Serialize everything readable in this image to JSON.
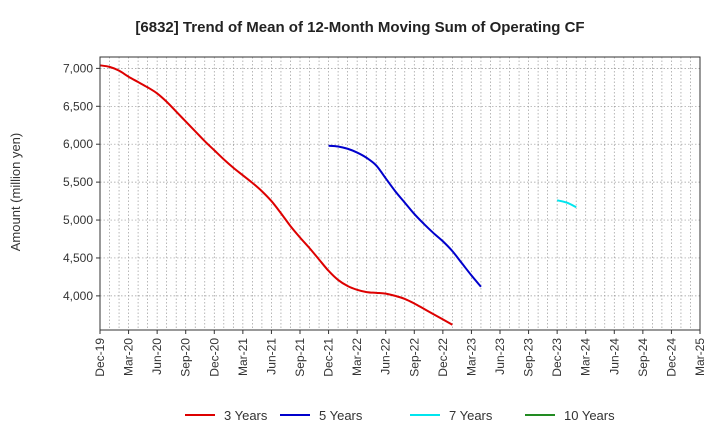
{
  "chart_data": {
    "type": "line",
    "title": "[6832]  Trend of Mean of 12-Month Moving Sum of Operating CF",
    "xlabel": "",
    "ylabel": "Amount (million yen)",
    "ylim": [
      3550,
      7150
    ],
    "yticks": [
      4000,
      4500,
      5000,
      5500,
      6000,
      6500,
      7000
    ],
    "ytick_labels": [
      "4,000",
      "4,500",
      "5,000",
      "5,500",
      "6,000",
      "6,500",
      "7,000"
    ],
    "x_start": "Dec-19",
    "x_months": 63,
    "xtick_labels": [
      "Dec-19",
      "Mar-20",
      "Jun-20",
      "Sep-20",
      "Dec-20",
      "Mar-21",
      "Jun-21",
      "Sep-21",
      "Dec-21",
      "Mar-22",
      "Jun-22",
      "Sep-22",
      "Dec-22",
      "Mar-23",
      "Jun-23",
      "Sep-23",
      "Dec-23",
      "Mar-24",
      "Jun-24",
      "Sep-24",
      "Dec-24",
      "Mar-25"
    ],
    "grid": true,
    "legend_position": "bottom",
    "series": [
      {
        "name": "3 Years",
        "color": "#dd0000",
        "x_offset": 0,
        "values": [
          7040,
          7020,
          6970,
          6890,
          6820,
          6750,
          6670,
          6560,
          6430,
          6300,
          6170,
          6040,
          5920,
          5800,
          5690,
          5590,
          5490,
          5380,
          5250,
          5090,
          4920,
          4770,
          4630,
          4480,
          4330,
          4210,
          4130,
          4080,
          4050,
          4040,
          4030,
          4000,
          3960,
          3900,
          3830,
          3760,
          3690,
          3620
        ]
      },
      {
        "name": "5 Years",
        "color": "#0000cc",
        "x_offset": 24,
        "values": [
          5980,
          5970,
          5940,
          5890,
          5820,
          5720,
          5550,
          5380,
          5230,
          5080,
          4950,
          4830,
          4720,
          4590,
          4430,
          4270,
          4120
        ]
      },
      {
        "name": "7 Years",
        "color": "#00e5ee",
        "x_offset": 48,
        "values": [
          5260,
          5230,
          5170
        ]
      },
      {
        "name": "10 Years",
        "color": "#228b22",
        "x_offset": 0,
        "values": []
      }
    ]
  }
}
